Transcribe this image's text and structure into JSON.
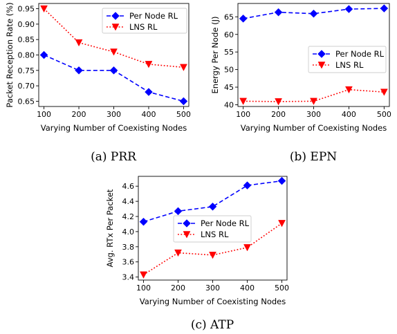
{
  "chart_data": [
    {
      "type": "line",
      "caption": "(a)  PRR",
      "xlabel": "Varying Number of Coexisting Nodes",
      "ylabel": "Packet Reception Rate (%)",
      "x": [
        100,
        200,
        300,
        400,
        500
      ],
      "xlim": [
        85,
        515
      ],
      "ylim": [
        0.633,
        0.967
      ],
      "yticks": [
        0.65,
        0.7,
        0.75,
        0.8,
        0.85,
        0.9,
        0.95
      ],
      "ytick_labels": [
        "0.65",
        "0.70",
        "0.75",
        "0.80",
        "0.85",
        "0.90",
        "0.95"
      ],
      "legend_position": "top-right",
      "series": [
        {
          "name": "Per Node RL",
          "values": [
            0.8,
            0.75,
            0.75,
            0.68,
            0.65
          ],
          "color": "#0000ff",
          "marker": "diamond",
          "dash": "dashed"
        },
        {
          "name": "LNS RL",
          "values": [
            0.95,
            0.84,
            0.81,
            0.77,
            0.76
          ],
          "color": "#ff0000",
          "marker": "triangle-down",
          "dash": "dotted"
        }
      ]
    },
    {
      "type": "line",
      "caption": "(b)  EPN",
      "xlabel": "Varying Number of Coexisting Nodes",
      "ylabel": "Energy Per Node (J)",
      "x": [
        100,
        200,
        300,
        400,
        500
      ],
      "xlim": [
        85,
        515
      ],
      "ylim": [
        39.5,
        68.8
      ],
      "yticks": [
        40,
        45,
        50,
        55,
        60,
        65
      ],
      "ytick_labels": [
        "40",
        "45",
        "50",
        "55",
        "60",
        "65"
      ],
      "legend_position": "center-right",
      "series": [
        {
          "name": "Per Node RL",
          "values": [
            64.5,
            66.3,
            65.9,
            67.2,
            67.4
          ],
          "color": "#0000ff",
          "marker": "diamond",
          "dash": "dashed"
        },
        {
          "name": "LNS RL",
          "values": [
            41.0,
            40.9,
            41.0,
            44.3,
            43.6
          ],
          "color": "#ff0000",
          "marker": "triangle-down",
          "dash": "dotted"
        }
      ]
    },
    {
      "type": "line",
      "caption": "(c)  ATP",
      "xlabel": "Varying Number of Coexisting Nodes",
      "ylabel": "Avg. RTx Per Packet",
      "x": [
        100,
        200,
        300,
        400,
        500
      ],
      "xlim": [
        85,
        515
      ],
      "ylim": [
        3.36,
        4.73
      ],
      "yticks": [
        3.4,
        3.6,
        3.8,
        4.0,
        4.2,
        4.4,
        4.6
      ],
      "ytick_labels": [
        "3.4",
        "3.6",
        "3.8",
        "4.0",
        "4.2",
        "4.4",
        "4.6"
      ],
      "legend_position": "center-left",
      "series": [
        {
          "name": "Per Node RL",
          "values": [
            4.13,
            4.27,
            4.33,
            4.61,
            4.67
          ],
          "color": "#0000ff",
          "marker": "diamond",
          "dash": "dashed"
        },
        {
          "name": "LNS RL",
          "values": [
            3.43,
            3.72,
            3.69,
            3.79,
            4.11
          ],
          "color": "#ff0000",
          "marker": "triangle-down",
          "dash": "dotted"
        }
      ]
    }
  ]
}
